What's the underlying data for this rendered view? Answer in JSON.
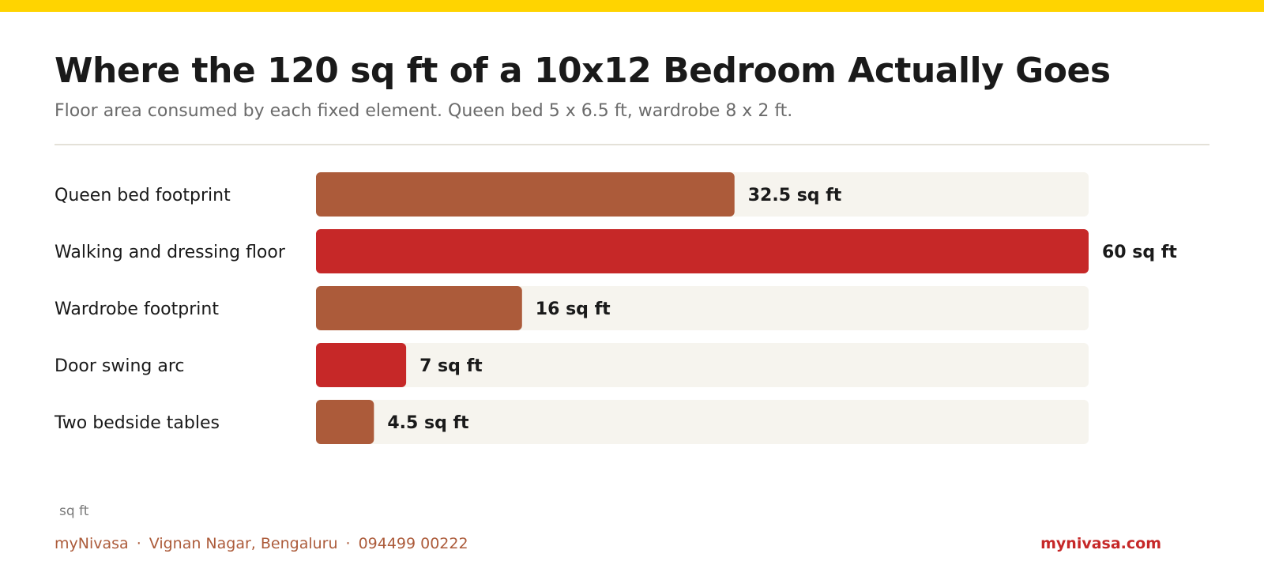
{
  "header": {
    "title": "Where the 120 sq ft of a 10x12 Bedroom Actually Goes",
    "subtitle": "Floor area consumed by each fixed element. Queen bed 5 x 6.5 ft, wardrobe 8 x 2 ft."
  },
  "chart_data": {
    "type": "bar",
    "orientation": "horizontal",
    "categories": [
      "Queen bed footprint",
      "Walking and dressing floor",
      "Wardrobe footprint",
      "Door swing arc",
      "Two bedside tables"
    ],
    "values": [
      32.5,
      60,
      16,
      7,
      4.5
    ],
    "value_labels": [
      "32.5 sq ft",
      "60 sq ft",
      "16 sq ft",
      "7 sq ft",
      "4.5 sq ft"
    ],
    "bar_colors": [
      "#AC5B3A",
      "#C62828",
      "#AC5B3A",
      "#C62828",
      "#AC5B3A"
    ],
    "xlim": [
      0,
      60
    ],
    "unit_label": "sq ft",
    "track_color": "#F6F4EE",
    "grid": false,
    "legend": "none"
  },
  "footer": {
    "brand": "myNivasa",
    "location": "Vignan Nagar, Bengaluru",
    "phone": "094499 00222",
    "separator": "·",
    "website": "mynivasa.com"
  },
  "colors": {
    "accent_stripe": "#FFD400",
    "primary_bar": "#AC5B3A",
    "highlight_bar": "#C62828",
    "footer_text": "#AC5B3A",
    "website_text": "#C62828"
  }
}
